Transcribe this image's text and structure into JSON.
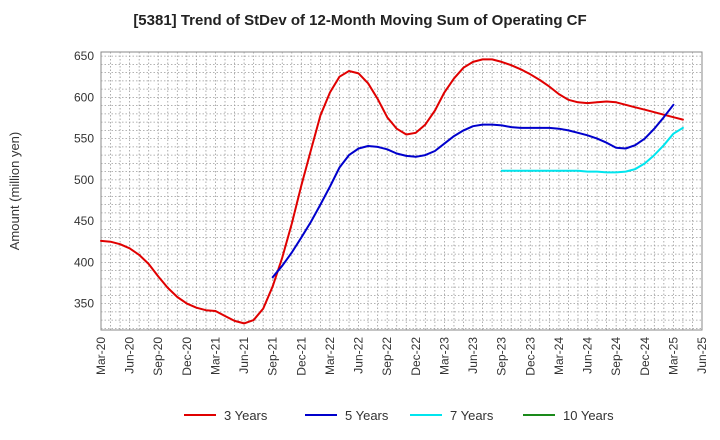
{
  "chart_data": {
    "type": "line",
    "title": "[5381]  Trend of StDev of 12-Month Moving Sum of Operating CF",
    "ylabel": "Amount (million yen)",
    "xlabel": "",
    "ylim": [
      318,
      655
    ],
    "y_ticks": [
      350,
      400,
      450,
      500,
      550,
      600,
      650
    ],
    "x_tick_labels": [
      "Mar-20",
      "Jun-20",
      "Sep-20",
      "Dec-20",
      "Mar-21",
      "Jun-21",
      "Sep-21",
      "Dec-21",
      "Mar-22",
      "Jun-22",
      "Sep-22",
      "Dec-22",
      "Mar-23",
      "Jun-23",
      "Sep-23",
      "Dec-23",
      "Mar-24",
      "Jun-24",
      "Sep-24",
      "Dec-24",
      "Mar-25",
      "Jun-25"
    ],
    "grid": true,
    "legend_position": "bottom",
    "series": [
      {
        "name": "3 Years",
        "color": "#e00000",
        "start_index": 0,
        "values": [
          426,
          425,
          422,
          417,
          409,
          398,
          383,
          369,
          358,
          350,
          345,
          342,
          341,
          335,
          329,
          326,
          330,
          344,
          371,
          406,
          447,
          493,
          536,
          578,
          606,
          625,
          632,
          629,
          617,
          598,
          576,
          562,
          555,
          557,
          567,
          584,
          606,
          623,
          636,
          643,
          646,
          646,
          643,
          639,
          634,
          628,
          621,
          613,
          604,
          597,
          594,
          593,
          594,
          595,
          594,
          591,
          588,
          585,
          582,
          579,
          576,
          573
        ]
      },
      {
        "name": "5 Years",
        "color": "#0000cc",
        "start_index": 18,
        "values": [
          382,
          396,
          412,
          430,
          449,
          470,
          492,
          515,
          530,
          538,
          541,
          540,
          537,
          532,
          529,
          528,
          530,
          535,
          544,
          553,
          560,
          565,
          567,
          567,
          566,
          564,
          563,
          563,
          563,
          563,
          562,
          560,
          557,
          554,
          550,
          545,
          539,
          538,
          542,
          550,
          562,
          576,
          591
        ]
      },
      {
        "name": "7 Years",
        "color": "#00e5ee",
        "start_index": 42,
        "values": [
          511,
          511,
          511,
          511,
          511,
          511,
          511,
          511,
          511,
          510,
          510,
          509,
          509,
          510,
          513,
          520,
          530,
          542,
          556,
          563
        ]
      },
      {
        "name": "10 Years",
        "color": "#1a8a1a",
        "start_index": 0,
        "values": []
      }
    ]
  }
}
